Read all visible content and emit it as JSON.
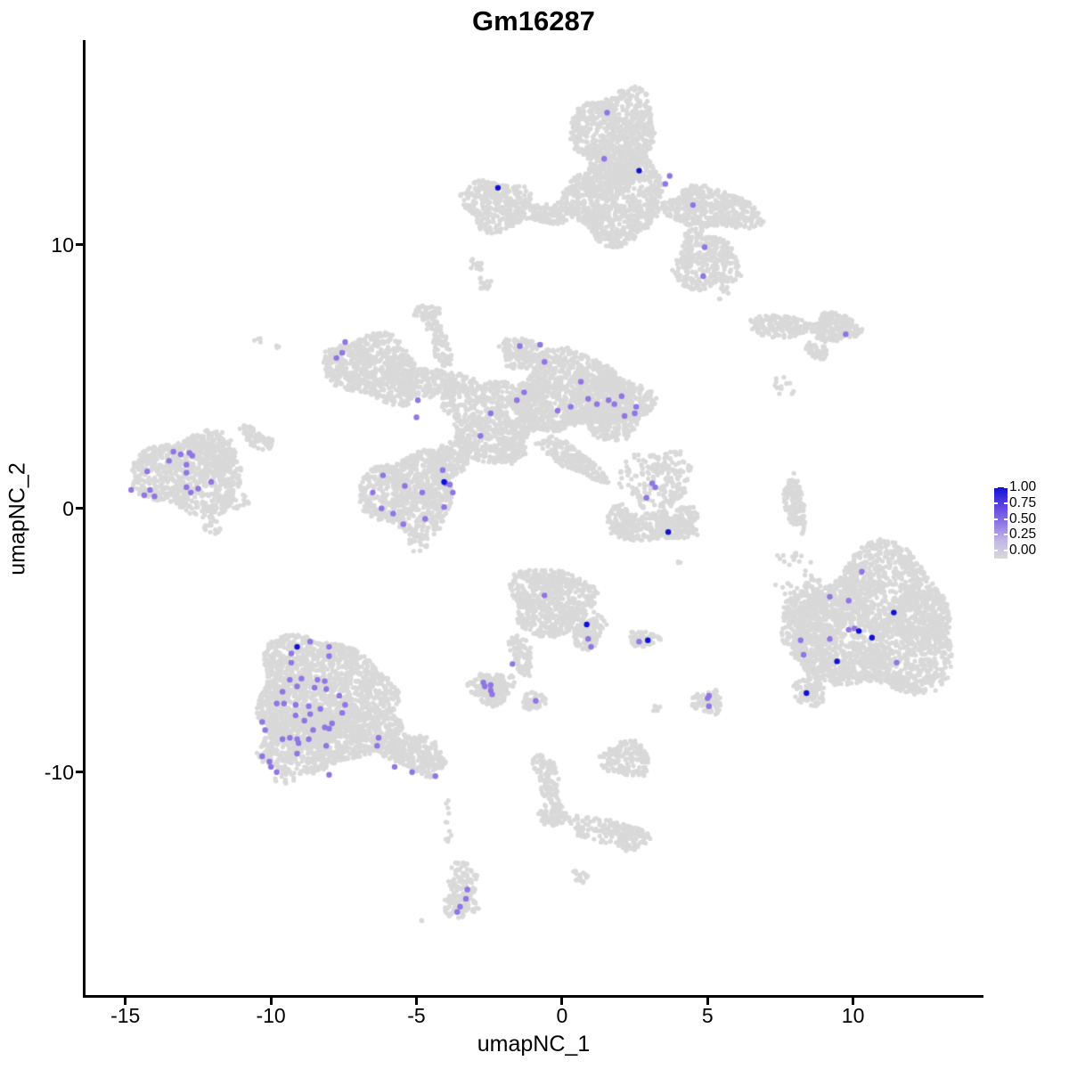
{
  "title": "Gm16287",
  "axes": {
    "x": {
      "label": "umapNC_1",
      "ticks": [
        -15,
        -10,
        -5,
        0,
        5,
        10
      ],
      "range": [
        -16.4,
        14.45
      ]
    },
    "y": {
      "label": "umapNC_2",
      "ticks": [
        10,
        0,
        -10
      ],
      "range": [
        -18.45,
        17.75
      ]
    }
  },
  "legend": {
    "labels": [
      "1.00",
      "0.75",
      "0.50",
      "0.25",
      "0.00"
    ],
    "values": [
      1.0,
      0.75,
      0.5,
      0.25,
      0.0
    ]
  },
  "colors": {
    "background_cells": "#D9D9D9",
    "axis": "#000000",
    "gradient_stops": [
      {
        "value": 0.0,
        "color": "#D9D9D9"
      },
      {
        "value": 0.25,
        "color": "#C2B7E6"
      },
      {
        "value": 0.5,
        "color": "#8F75E5"
      },
      {
        "value": 0.75,
        "color": "#5A42E0"
      },
      {
        "value": 1.0,
        "color": "#1111D6"
      }
    ]
  },
  "chart_data": {
    "type": "scatter",
    "title": "Gm16287",
    "xlabel": "umapNC_1",
    "ylabel": "umapNC_2",
    "xlim": [
      -16.4,
      14.45
    ],
    "ylim": [
      -18.45,
      17.75
    ],
    "x_ticks": [
      -15,
      -10,
      -5,
      0,
      5,
      10
    ],
    "y_ticks": [
      10,
      0,
      -10
    ],
    "legend_title_values": [
      1.0,
      0.75,
      0.5,
      0.25,
      0.0
    ],
    "legend_position": "right",
    "grid": false,
    "background_cluster_format": [
      "cx",
      "cy",
      "rx",
      "ry",
      "rot_deg",
      "n_points"
    ],
    "background_clusters": [
      [
        1.85,
        14.3,
        1.45,
        1.55,
        0,
        700
      ],
      [
        1.8,
        11.55,
        1.7,
        1.4,
        0,
        800
      ],
      [
        1.85,
        12.9,
        1.15,
        0.9,
        0,
        300
      ],
      [
        5.15,
        11.35,
        1.7,
        0.75,
        -8,
        500
      ],
      [
        4.95,
        9.35,
        1.15,
        1.1,
        0,
        350
      ],
      [
        -2.25,
        11.5,
        1.2,
        0.95,
        -10,
        350
      ],
      [
        -0.5,
        11.2,
        0.95,
        0.4,
        0,
        120
      ],
      [
        -2.95,
        9.2,
        0.22,
        0.25,
        0,
        12
      ],
      [
        -2.6,
        8.5,
        0.3,
        0.3,
        0,
        14
      ],
      [
        5.55,
        8.2,
        0.25,
        0.3,
        0,
        9
      ],
      [
        7.55,
        6.9,
        1.2,
        0.42,
        -5,
        180
      ],
      [
        9.4,
        6.85,
        0.8,
        0.55,
        0,
        200
      ],
      [
        8.75,
        5.95,
        0.45,
        0.28,
        -35,
        40
      ],
      [
        7.7,
        4.65,
        0.45,
        0.45,
        0,
        13
      ],
      [
        -6.45,
        5.3,
        1.7,
        1.2,
        -18,
        700
      ],
      [
        -4.6,
        4.8,
        1.4,
        0.55,
        -5,
        250
      ],
      [
        -2.35,
        3.4,
        1.7,
        1.55,
        0,
        750
      ],
      [
        -4.6,
        7.3,
        0.45,
        0.45,
        0,
        60
      ],
      [
        -4.15,
        6.15,
        0.27,
        0.9,
        10,
        80
      ],
      [
        0.3,
        4.4,
        2.0,
        1.5,
        0,
        1000
      ],
      [
        -1.4,
        5.9,
        0.75,
        0.6,
        0,
        150
      ],
      [
        1.8,
        3.85,
        1.25,
        1.2,
        0,
        450
      ],
      [
        -5.25,
        0.55,
        1.6,
        1.5,
        0,
        750
      ],
      [
        -3.85,
        1.9,
        0.95,
        0.6,
        40,
        200
      ],
      [
        0.3,
        1.9,
        1.4,
        0.4,
        -33,
        220
      ],
      [
        -4.95,
        -1.3,
        0.35,
        0.4,
        0,
        22
      ],
      [
        -1.85,
        2.2,
        0.6,
        0.5,
        0,
        80
      ],
      [
        -12.75,
        1.3,
        1.9,
        1.5,
        0,
        850
      ],
      [
        -12.0,
        2.1,
        0.85,
        0.55,
        -25,
        150
      ],
      [
        -10.5,
        2.65,
        0.7,
        0.3,
        -35,
        60
      ],
      [
        -12.0,
        -0.75,
        0.3,
        0.3,
        0,
        16
      ],
      [
        -11.35,
        0.3,
        0.55,
        0.5,
        0,
        28
      ],
      [
        3.25,
        1.05,
        1.2,
        1.2,
        0,
        220
      ],
      [
        3.1,
        -0.75,
        1.45,
        0.5,
        0,
        280
      ],
      [
        1.95,
        -0.3,
        0.4,
        0.45,
        0,
        60
      ],
      [
        4.3,
        -0.35,
        0.4,
        0.45,
        0,
        60
      ],
      [
        8.0,
        0.2,
        0.33,
        1.1,
        8,
        120
      ],
      [
        7.95,
        -1.7,
        0.12,
        0.12,
        0,
        4
      ],
      [
        10.85,
        -4.4,
        2.7,
        2.7,
        0,
        2400
      ],
      [
        8.4,
        -4.5,
        0.8,
        1.7,
        0,
        350
      ],
      [
        8.5,
        -6.9,
        0.55,
        0.6,
        0,
        90
      ],
      [
        7.95,
        -2.4,
        0.85,
        0.85,
        0,
        22
      ],
      [
        -0.4,
        -3.5,
        1.4,
        1.3,
        0,
        650
      ],
      [
        0.85,
        -4.55,
        0.6,
        0.75,
        0,
        150
      ],
      [
        -1.4,
        -5.55,
        0.33,
        0.85,
        15,
        90
      ],
      [
        -2.4,
        -6.8,
        0.8,
        0.6,
        0,
        160
      ],
      [
        -0.95,
        -7.3,
        0.42,
        0.36,
        0,
        50
      ],
      [
        2.8,
        -4.95,
        0.52,
        0.3,
        0,
        60
      ],
      [
        3.25,
        -7.55,
        0.17,
        0.18,
        0,
        8
      ],
      [
        4.05,
        -2.05,
        0.1,
        0.1,
        0,
        3
      ],
      [
        5.0,
        -7.3,
        0.52,
        0.5,
        0,
        80
      ],
      [
        -8.3,
        -6.9,
        2.3,
        2.0,
        0,
        1600
      ],
      [
        -8.6,
        -8.8,
        2.0,
        1.2,
        0,
        800
      ],
      [
        -5.1,
        -9.3,
        1.25,
        0.65,
        -22,
        300
      ],
      [
        -6.15,
        -8.6,
        0.9,
        0.7,
        0,
        200
      ],
      [
        -9.5,
        -10.2,
        0.35,
        0.3,
        0,
        16
      ],
      [
        -3.9,
        -11.9,
        0.18,
        0.8,
        0,
        12
      ],
      [
        -3.45,
        -14.3,
        0.48,
        1.0,
        0,
        110
      ],
      [
        -3.5,
        -15.1,
        0.6,
        0.45,
        0,
        60
      ],
      [
        -0.5,
        -10.3,
        0.38,
        1.15,
        12,
        110
      ],
      [
        -0.3,
        -11.6,
        0.52,
        0.48,
        0,
        70
      ],
      [
        1.45,
        -12.2,
        1.25,
        0.45,
        -10,
        130
      ],
      [
        2.4,
        -12.5,
        0.55,
        0.48,
        0,
        70
      ],
      [
        2.2,
        -9.5,
        0.85,
        0.68,
        0,
        170
      ],
      [
        0.6,
        -13.9,
        0.3,
        0.27,
        0,
        18
      ],
      [
        -4.85,
        -15.6,
        0.1,
        0.1,
        0,
        2
      ],
      [
        -10.45,
        6.35,
        0.14,
        0.12,
        0,
        4
      ],
      [
        -9.8,
        6.1,
        0.1,
        0.1,
        0,
        3
      ]
    ],
    "expressing_cell_format": [
      "x",
      "y",
      "expression_value"
    ],
    "expressing_cells": [
      [
        1.55,
        15.0,
        0.5
      ],
      [
        1.45,
        13.25,
        0.5
      ],
      [
        2.65,
        12.8,
        1.0
      ],
      [
        3.7,
        12.6,
        0.5
      ],
      [
        3.55,
        12.3,
        0.5
      ],
      [
        4.5,
        11.5,
        0.5
      ],
      [
        4.9,
        9.9,
        0.5
      ],
      [
        4.85,
        8.8,
        0.5
      ],
      [
        -2.2,
        12.15,
        1.0
      ],
      [
        9.75,
        6.6,
        0.5
      ],
      [
        -7.45,
        6.3,
        0.5
      ],
      [
        -7.55,
        5.9,
        0.5
      ],
      [
        -7.75,
        5.7,
        0.5
      ],
      [
        -4.95,
        4.1,
        0.5
      ],
      [
        -5.0,
        3.45,
        0.5
      ],
      [
        -1.45,
        6.15,
        0.5
      ],
      [
        -0.75,
        6.2,
        0.5
      ],
      [
        -0.6,
        5.55,
        0.5
      ],
      [
        -1.3,
        4.4,
        0.5
      ],
      [
        -1.55,
        4.1,
        0.5
      ],
      [
        -2.45,
        3.6,
        0.5
      ],
      [
        -2.8,
        2.75,
        0.5
      ],
      [
        -0.15,
        3.7,
        0.5
      ],
      [
        0.65,
        4.8,
        0.5
      ],
      [
        0.3,
        3.85,
        0.5
      ],
      [
        0.9,
        4.15,
        0.5
      ],
      [
        1.2,
        3.95,
        0.5
      ],
      [
        1.6,
        4.1,
        0.5
      ],
      [
        1.8,
        3.95,
        0.5
      ],
      [
        2.05,
        4.25,
        0.5
      ],
      [
        2.15,
        3.5,
        0.5
      ],
      [
        2.55,
        3.85,
        0.5
      ],
      [
        2.5,
        3.6,
        0.5
      ],
      [
        -6.15,
        1.25,
        0.5
      ],
      [
        -5.4,
        0.85,
        0.5
      ],
      [
        -6.5,
        0.6,
        0.5
      ],
      [
        -6.2,
        0.0,
        0.5
      ],
      [
        -5.8,
        -0.2,
        0.5
      ],
      [
        -4.8,
        0.6,
        0.5
      ],
      [
        -4.7,
        -0.4,
        0.5
      ],
      [
        -5.45,
        -0.6,
        0.5
      ],
      [
        -4.1,
        1.45,
        0.5
      ],
      [
        -4.0,
        0.95,
        0.5
      ],
      [
        -4.05,
        1.0,
        1.0
      ],
      [
        -3.85,
        0.9,
        0.5
      ],
      [
        -3.75,
        0.6,
        0.5
      ],
      [
        -4.05,
        0.05,
        0.5
      ],
      [
        -13.35,
        2.15,
        0.5
      ],
      [
        -13.1,
        2.05,
        0.5
      ],
      [
        -12.8,
        2.1,
        0.5
      ],
      [
        -12.7,
        2.0,
        0.5
      ],
      [
        -13.5,
        1.8,
        0.5
      ],
      [
        -14.25,
        1.4,
        0.5
      ],
      [
        -12.9,
        1.65,
        0.5
      ],
      [
        -12.9,
        1.35,
        0.5
      ],
      [
        -14.8,
        0.7,
        0.5
      ],
      [
        -14.35,
        0.5,
        0.5
      ],
      [
        -14.15,
        0.7,
        0.5
      ],
      [
        -14.0,
        0.45,
        0.5
      ],
      [
        -12.9,
        0.8,
        0.5
      ],
      [
        -12.75,
        0.6,
        0.5
      ],
      [
        -12.5,
        0.75,
        0.5
      ],
      [
        -12.05,
        1.0,
        0.5
      ],
      [
        3.1,
        0.95,
        0.5
      ],
      [
        3.2,
        0.8,
        0.5
      ],
      [
        2.9,
        0.4,
        0.5
      ],
      [
        3.65,
        -0.9,
        1.0
      ],
      [
        10.3,
        -2.4,
        0.5
      ],
      [
        9.2,
        -3.35,
        0.5
      ],
      [
        9.85,
        -3.5,
        0.5
      ],
      [
        11.4,
        -3.95,
        1.0
      ],
      [
        9.85,
        -4.6,
        0.5
      ],
      [
        10.05,
        -4.55,
        0.5
      ],
      [
        10.2,
        -4.65,
        1.0
      ],
      [
        10.65,
        -4.9,
        1.0
      ],
      [
        8.2,
        -5.0,
        0.5
      ],
      [
        9.2,
        -4.95,
        0.5
      ],
      [
        8.3,
        -5.55,
        0.5
      ],
      [
        9.45,
        -5.8,
        1.0
      ],
      [
        11.5,
        -5.85,
        0.5
      ],
      [
        8.4,
        -7.0,
        1.0
      ],
      [
        -0.6,
        -3.3,
        0.5
      ],
      [
        0.85,
        -4.4,
        1.0
      ],
      [
        0.9,
        -4.95,
        0.5
      ],
      [
        1.0,
        -5.25,
        0.5
      ],
      [
        -1.7,
        -5.9,
        0.5
      ],
      [
        -2.7,
        -6.6,
        0.5
      ],
      [
        -2.65,
        -6.75,
        0.5
      ],
      [
        -2.45,
        -6.7,
        0.5
      ],
      [
        -2.45,
        -6.9,
        0.5
      ],
      [
        -2.4,
        -7.05,
        0.5
      ],
      [
        -0.9,
        -7.3,
        0.5
      ],
      [
        2.65,
        -5.05,
        0.5
      ],
      [
        2.95,
        -5.0,
        1.0
      ],
      [
        5.05,
        -7.1,
        0.5
      ],
      [
        5.0,
        -7.2,
        0.5
      ],
      [
        5.05,
        -7.5,
        0.5
      ],
      [
        -9.1,
        -5.25,
        1.0
      ],
      [
        -8.65,
        -5.05,
        0.5
      ],
      [
        -9.3,
        -5.5,
        0.5
      ],
      [
        -8.0,
        -5.25,
        0.5
      ],
      [
        -9.3,
        -5.85,
        0.5
      ],
      [
        -8.0,
        -5.6,
        0.5
      ],
      [
        -9.35,
        -6.5,
        0.5
      ],
      [
        -8.95,
        -6.45,
        0.5
      ],
      [
        -8.4,
        -6.5,
        0.5
      ],
      [
        -8.15,
        -6.55,
        0.5
      ],
      [
        -8.5,
        -6.8,
        0.5
      ],
      [
        -8.1,
        -6.85,
        0.5
      ],
      [
        -9.1,
        -6.75,
        0.5
      ],
      [
        -9.6,
        -6.95,
        0.5
      ],
      [
        -9.8,
        -7.4,
        0.5
      ],
      [
        -9.55,
        -7.4,
        0.5
      ],
      [
        -9.15,
        -7.45,
        0.5
      ],
      [
        -8.7,
        -7.5,
        0.5
      ],
      [
        -8.65,
        -7.8,
        0.5
      ],
      [
        -8.3,
        -7.6,
        0.5
      ],
      [
        -8.85,
        -8.05,
        0.5
      ],
      [
        -9.15,
        -7.85,
        0.5
      ],
      [
        -7.65,
        -7.1,
        0.5
      ],
      [
        -7.45,
        -7.45,
        0.5
      ],
      [
        -7.55,
        -7.75,
        0.5
      ],
      [
        -7.9,
        -8.15,
        0.5
      ],
      [
        -8.0,
        -8.35,
        0.5
      ],
      [
        -8.15,
        -8.3,
        0.5
      ],
      [
        -8.55,
        -8.4,
        0.5
      ],
      [
        -10.3,
        -8.1,
        0.5
      ],
      [
        -10.2,
        -8.4,
        0.5
      ],
      [
        -9.6,
        -8.75,
        0.5
      ],
      [
        -9.35,
        -8.7,
        0.5
      ],
      [
        -9.1,
        -8.75,
        0.5
      ],
      [
        -9.05,
        -8.9,
        0.5
      ],
      [
        -8.7,
        -8.75,
        0.5
      ],
      [
        -9.1,
        -9.3,
        0.5
      ],
      [
        -10.3,
        -9.4,
        0.5
      ],
      [
        -10.05,
        -9.6,
        0.5
      ],
      [
        -10.0,
        -9.8,
        0.5
      ],
      [
        -9.8,
        -10.0,
        0.5
      ],
      [
        -8.0,
        -10.1,
        0.5
      ],
      [
        -8.1,
        -9.0,
        0.5
      ],
      [
        -6.3,
        -8.7,
        0.5
      ],
      [
        -6.35,
        -9.0,
        0.5
      ],
      [
        -5.75,
        -9.8,
        0.5
      ],
      [
        -5.15,
        -10.0,
        0.5
      ],
      [
        -4.35,
        -10.15,
        0.5
      ],
      [
        -3.25,
        -14.45,
        0.5
      ],
      [
        -3.3,
        -14.8,
        0.5
      ],
      [
        -3.5,
        -15.1,
        0.5
      ],
      [
        -3.6,
        -15.3,
        0.5
      ]
    ]
  }
}
